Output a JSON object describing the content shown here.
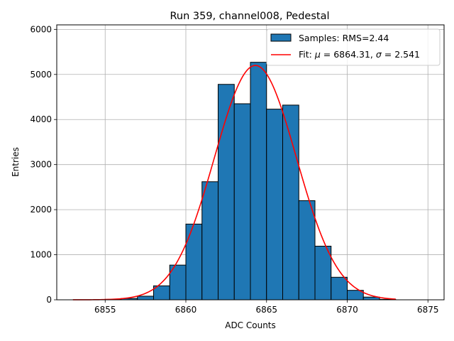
{
  "chart_data": {
    "type": "bar",
    "title": "Run 359, channel008, Pedestal",
    "xlabel": "ADC Counts",
    "ylabel": "Entries",
    "xlim": [
      6852,
      6876
    ],
    "ylim": [
      0,
      6100
    ],
    "xticks": [
      6855,
      6860,
      6865,
      6870,
      6875
    ],
    "yticks": [
      0,
      1000,
      2000,
      3000,
      4000,
      5000,
      6000
    ],
    "grid": true,
    "legend_position": "top-right",
    "histogram": {
      "name": "Samples: RMS=2.44",
      "color": "#1f77b4",
      "bin_edges": [
        6853,
        6854,
        6855,
        6856,
        6857,
        6858,
        6859,
        6860,
        6861,
        6862,
        6863,
        6864,
        6865,
        6866,
        6867,
        6868,
        6869,
        6870,
        6871,
        6872,
        6873
      ],
      "counts": [
        0,
        0,
        10,
        30,
        80,
        310,
        770,
        1680,
        2620,
        4780,
        4350,
        5270,
        4230,
        4320,
        2200,
        1190,
        500,
        210,
        60,
        10
      ]
    },
    "fit": {
      "name": "Fit: μ = 6864.31, σ = 2.541",
      "label_mu": "μ",
      "label_mu_value": " = 6864.31, ",
      "label_sigma": "σ",
      "label_sigma_value": " = 2.541",
      "label_prefix": "Fit: ",
      "color": "#ff0000",
      "mu": 6864.31,
      "sigma": 2.541,
      "amplitude": 5200,
      "x_range": [
        6853,
        6873
      ]
    }
  }
}
